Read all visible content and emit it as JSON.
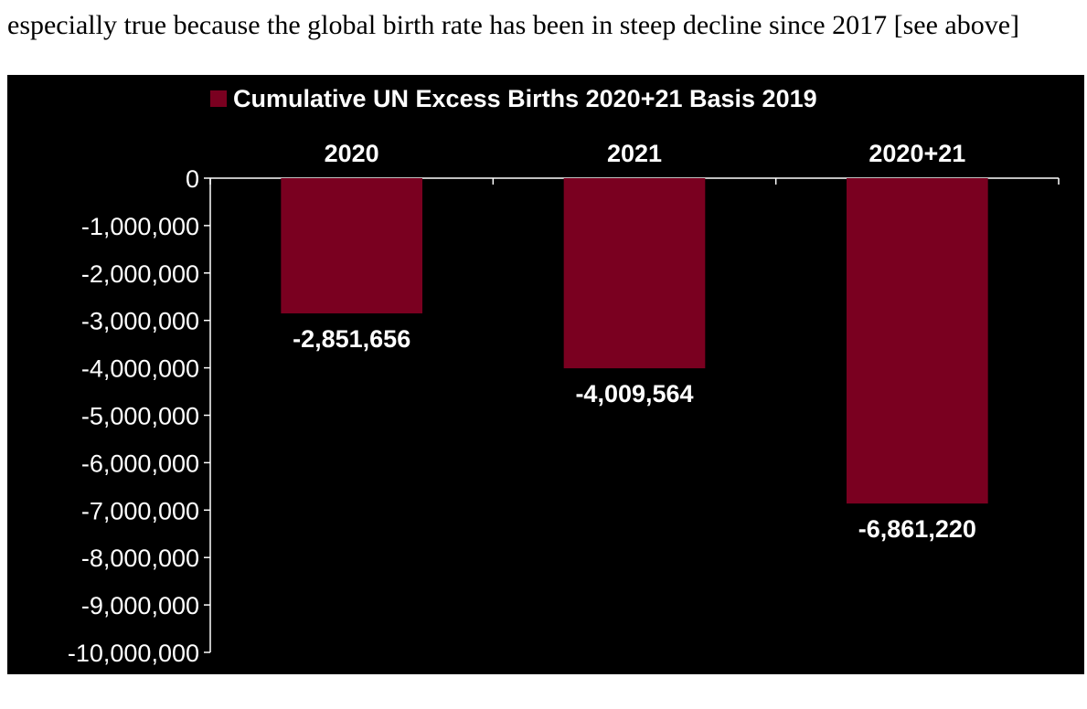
{
  "intro_text": "especially true because the global birth rate has been in steep decline since 2017 [see above]",
  "chart_data": {
    "type": "bar",
    "categories": [
      "2020",
      "2021",
      "2020+21"
    ],
    "series": [
      {
        "name": "Cumulative UN Excess Births 2020+21 Basis 2019",
        "values": [
          -2851656,
          -4009564,
          -6861220
        ]
      }
    ],
    "data_labels": [
      "-2,851,656",
      "-4,009,564",
      "-6,861,220"
    ],
    "title": "",
    "xlabel": "",
    "ylabel": "",
    "ylim": [
      -10000000,
      0
    ],
    "yticks": [
      0,
      -1000000,
      -2000000,
      -3000000,
      -4000000,
      -5000000,
      -6000000,
      -7000000,
      -8000000,
      -9000000,
      -10000000
    ],
    "ytick_labels": [
      "0",
      "-1,000,000",
      "-2,000,000",
      "-3,000,000",
      "-4,000,000",
      "-5,000,000",
      "-6,000,000",
      "-7,000,000",
      "-8,000,000",
      "-9,000,000",
      "-10,000,000"
    ],
    "x_axis_position": "top",
    "legend_position": "top",
    "grid": false,
    "colors": {
      "background": "#000000",
      "bar": "#7a0020",
      "text": "#ffffff",
      "axis": "#ffffff"
    }
  }
}
